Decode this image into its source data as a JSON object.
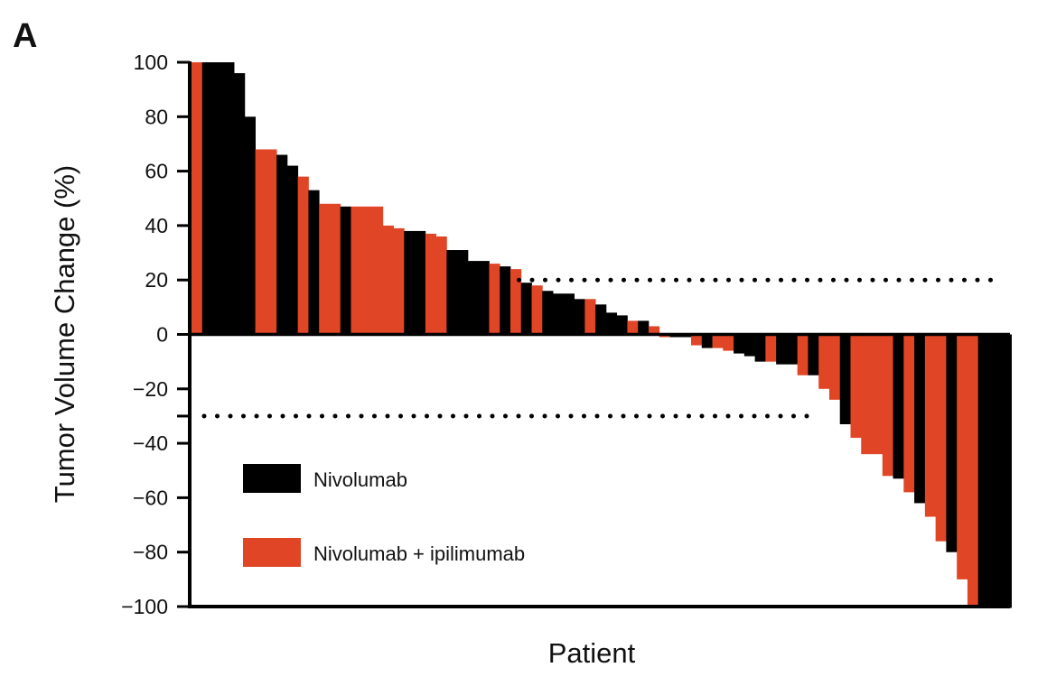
{
  "panel_label": "A",
  "chart_data": {
    "type": "bar",
    "subtype": "waterfall",
    "ylabel": "Tumor Volume Change (%)",
    "xlabel": "Patient",
    "ylim": [
      -100,
      100
    ],
    "yticks": [
      100,
      80,
      60,
      40,
      20,
      0,
      -20,
      -40,
      -60,
      -80,
      -100
    ],
    "ytick_labels": [
      "100",
      "80",
      "60",
      "40",
      "20",
      "0",
      "−20",
      "−40",
      "−60",
      "−80",
      "−100"
    ],
    "thresholds": [
      20,
      -30
    ],
    "legend_position": "lower-left",
    "series": [
      {
        "key": "N",
        "name": "Nivolumab",
        "color": "#000000"
      },
      {
        "key": "NI",
        "name": "Nivolumab + ipilimumab",
        "color": "#e04526"
      }
    ],
    "bars": [
      {
        "s": "NI",
        "v": 100
      },
      {
        "s": "N",
        "v": 100
      },
      {
        "s": "N",
        "v": 100
      },
      {
        "s": "N",
        "v": 100
      },
      {
        "s": "N",
        "v": 96
      },
      {
        "s": "N",
        "v": 80
      },
      {
        "s": "NI",
        "v": 68
      },
      {
        "s": "NI",
        "v": 68
      },
      {
        "s": "N",
        "v": 66
      },
      {
        "s": "N",
        "v": 62
      },
      {
        "s": "NI",
        "v": 58
      },
      {
        "s": "N",
        "v": 53
      },
      {
        "s": "NI",
        "v": 48
      },
      {
        "s": "NI",
        "v": 48
      },
      {
        "s": "N",
        "v": 47
      },
      {
        "s": "NI",
        "v": 47
      },
      {
        "s": "NI",
        "v": 47
      },
      {
        "s": "NI",
        "v": 47
      },
      {
        "s": "NI",
        "v": 40
      },
      {
        "s": "NI",
        "v": 39
      },
      {
        "s": "N",
        "v": 38
      },
      {
        "s": "N",
        "v": 38
      },
      {
        "s": "NI",
        "v": 37
      },
      {
        "s": "NI",
        "v": 36
      },
      {
        "s": "N",
        "v": 31
      },
      {
        "s": "N",
        "v": 31
      },
      {
        "s": "N",
        "v": 27
      },
      {
        "s": "N",
        "v": 27
      },
      {
        "s": "NI",
        "v": 26
      },
      {
        "s": "N",
        "v": 25
      },
      {
        "s": "NI",
        "v": 24
      },
      {
        "s": "N",
        "v": 19
      },
      {
        "s": "NI",
        "v": 18
      },
      {
        "s": "N",
        "v": 16
      },
      {
        "s": "N",
        "v": 15
      },
      {
        "s": "N",
        "v": 15
      },
      {
        "s": "N",
        "v": 13
      },
      {
        "s": "NI",
        "v": 13
      },
      {
        "s": "N",
        "v": 11
      },
      {
        "s": "N",
        "v": 8
      },
      {
        "s": "N",
        "v": 7
      },
      {
        "s": "NI",
        "v": 5
      },
      {
        "s": "N",
        "v": 5
      },
      {
        "s": "NI",
        "v": 3
      },
      {
        "s": "NI",
        "v": -1
      },
      {
        "s": "N",
        "v": -1
      },
      {
        "s": "N",
        "v": -1
      },
      {
        "s": "NI",
        "v": -4
      },
      {
        "s": "N",
        "v": -5
      },
      {
        "s": "NI",
        "v": -5
      },
      {
        "s": "NI",
        "v": -6
      },
      {
        "s": "N",
        "v": -7
      },
      {
        "s": "N",
        "v": -8
      },
      {
        "s": "N",
        "v": -10
      },
      {
        "s": "NI",
        "v": -10
      },
      {
        "s": "N",
        "v": -11
      },
      {
        "s": "N",
        "v": -11
      },
      {
        "s": "NI",
        "v": -15
      },
      {
        "s": "N",
        "v": -15
      },
      {
        "s": "NI",
        "v": -20
      },
      {
        "s": "NI",
        "v": -24
      },
      {
        "s": "N",
        "v": -33
      },
      {
        "s": "NI",
        "v": -38
      },
      {
        "s": "NI",
        "v": -44
      },
      {
        "s": "NI",
        "v": -44
      },
      {
        "s": "NI",
        "v": -52
      },
      {
        "s": "N",
        "v": -53
      },
      {
        "s": "NI",
        "v": -58
      },
      {
        "s": "N",
        "v": -62
      },
      {
        "s": "NI",
        "v": -67
      },
      {
        "s": "NI",
        "v": -76
      },
      {
        "s": "N",
        "v": -80
      },
      {
        "s": "NI",
        "v": -90
      },
      {
        "s": "NI",
        "v": -100
      },
      {
        "s": "N",
        "v": -100
      },
      {
        "s": "N",
        "v": -100
      },
      {
        "s": "N",
        "v": -100
      }
    ]
  }
}
